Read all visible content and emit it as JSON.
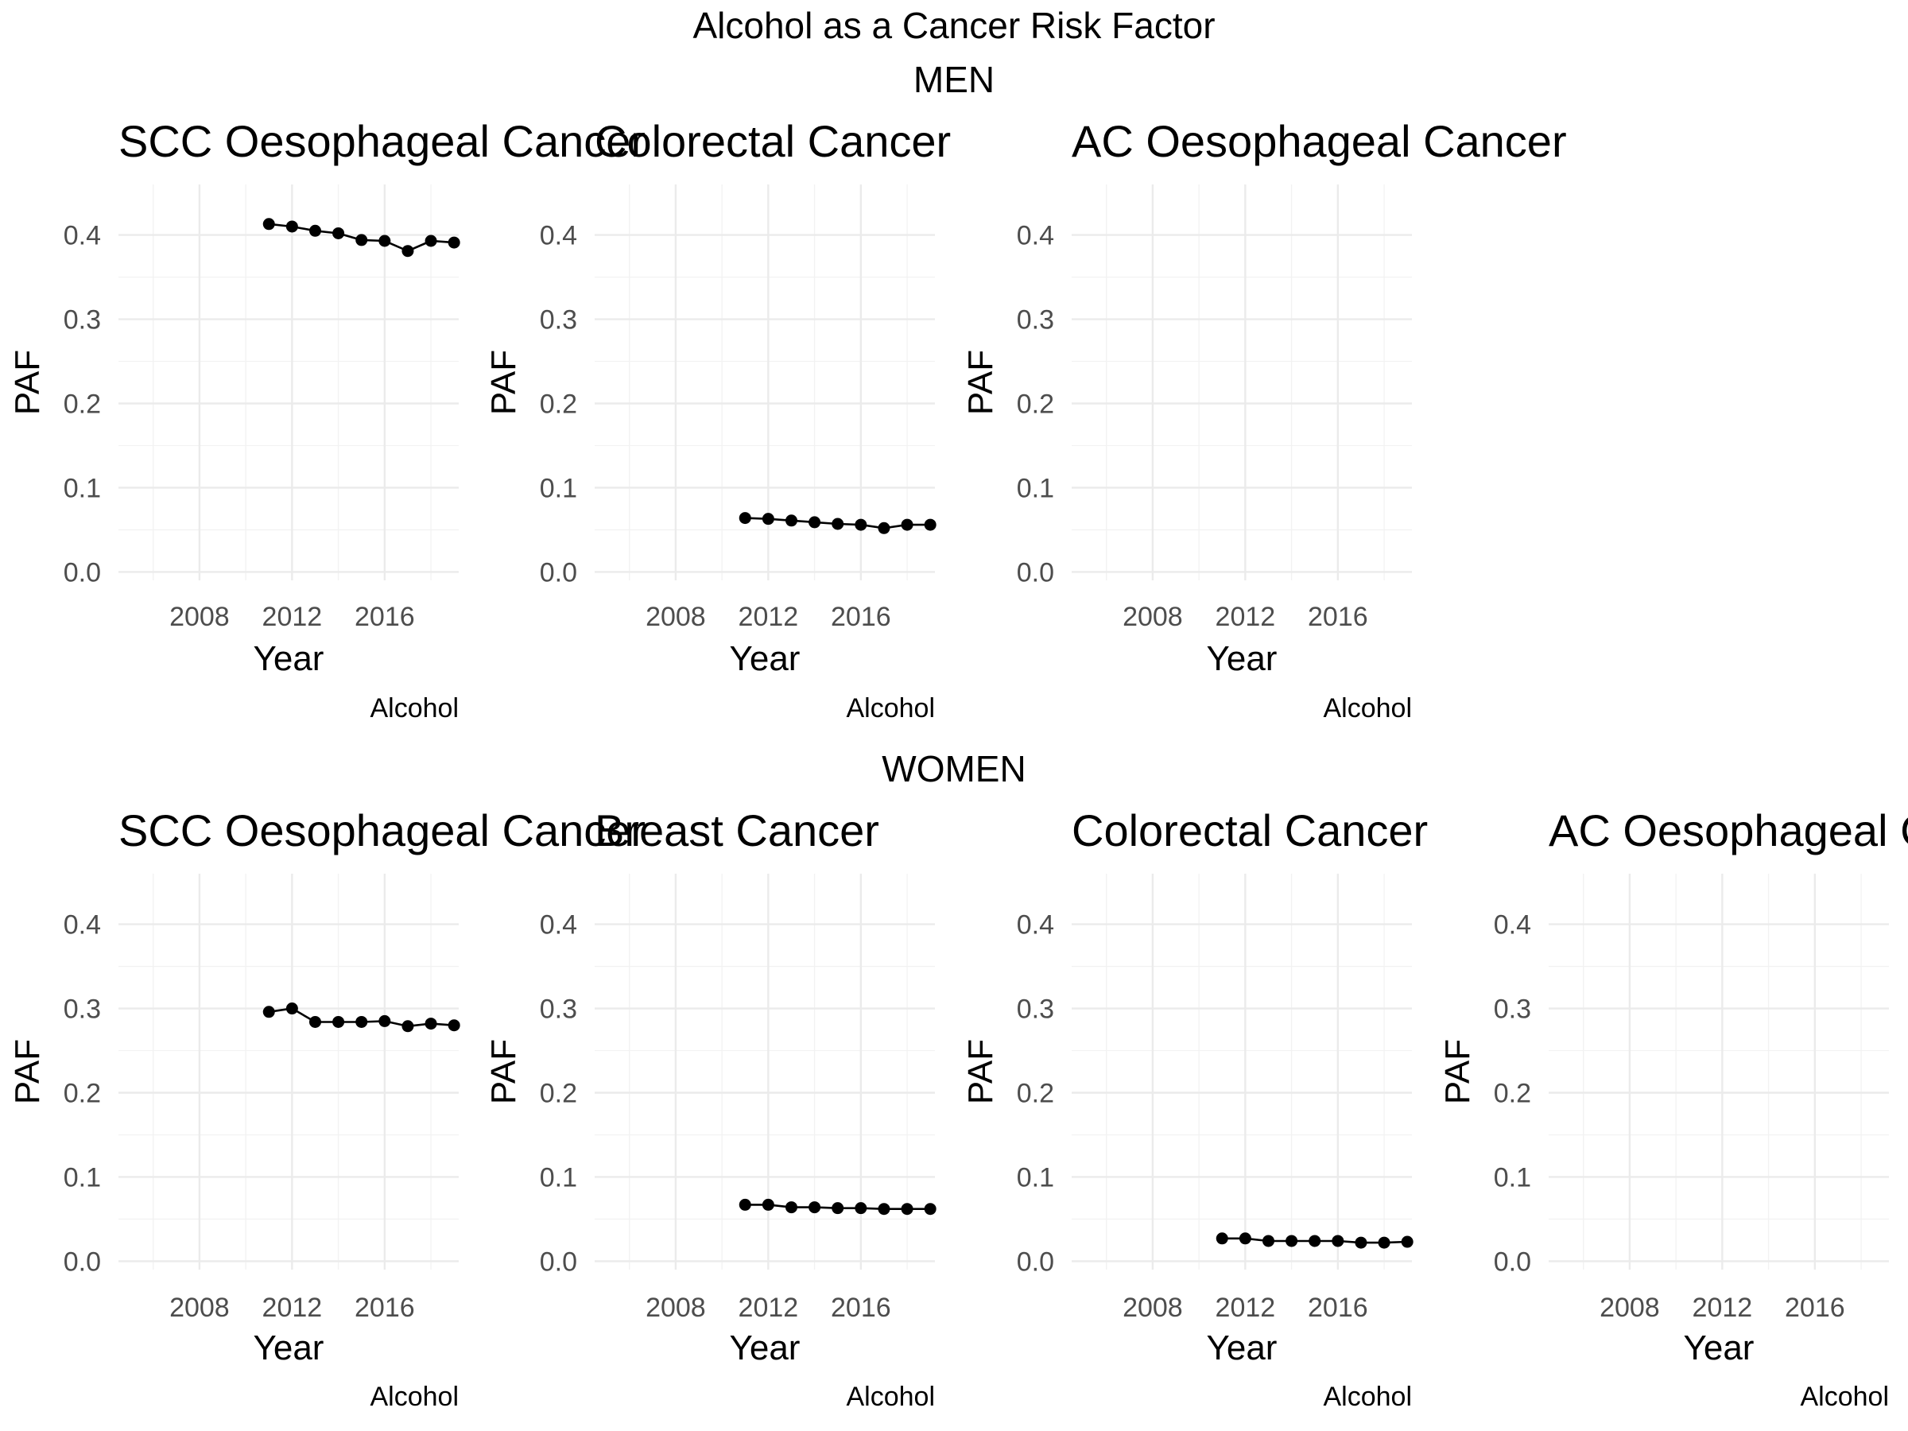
{
  "title": "Alcohol as a Cancer Risk Factor",
  "sections": [
    {
      "label": "MEN"
    },
    {
      "label": "WOMEN"
    }
  ],
  "chart_data": [
    {
      "type": "line",
      "section": 0,
      "col": 0,
      "title": "SCC Oesophageal Cancer",
      "xlabel": "Year",
      "ylabel": "PAF",
      "caption": "Alcohol",
      "xlim": [
        2004.5,
        2019.2
      ],
      "ylim": [
        -0.01,
        0.46
      ],
      "xticks": [
        2008,
        2012,
        2016
      ],
      "xtick_labels": [
        "2008",
        "2012",
        "2016"
      ],
      "yticks": [
        0.0,
        0.1,
        0.2,
        0.3,
        0.4
      ],
      "ytick_labels": [
        "0.0",
        "0.1",
        "0.2",
        "0.3",
        "0.4"
      ],
      "grid": true,
      "series": [
        {
          "x": [
            2011,
            2012,
            2013,
            2014,
            2015,
            2016,
            2017,
            2018,
            2019
          ],
          "y": [
            0.413,
            0.41,
            0.405,
            0.402,
            0.394,
            0.393,
            0.381,
            0.393,
            0.391
          ]
        }
      ]
    },
    {
      "type": "line",
      "section": 0,
      "col": 1,
      "title": "Colorectal Cancer",
      "xlabel": "Year",
      "ylabel": "PAF",
      "caption": "Alcohol",
      "xlim": [
        2004.5,
        2019.2
      ],
      "ylim": [
        -0.01,
        0.46
      ],
      "xticks": [
        2008,
        2012,
        2016
      ],
      "xtick_labels": [
        "2008",
        "2012",
        "2016"
      ],
      "yticks": [
        0.0,
        0.1,
        0.2,
        0.3,
        0.4
      ],
      "ytick_labels": [
        "0.0",
        "0.1",
        "0.2",
        "0.3",
        "0.4"
      ],
      "grid": true,
      "series": [
        {
          "x": [
            2011,
            2012,
            2013,
            2014,
            2015,
            2016,
            2017,
            2018,
            2019
          ],
          "y": [
            0.064,
            0.063,
            0.061,
            0.059,
            0.057,
            0.056,
            0.052,
            0.056,
            0.056
          ]
        }
      ]
    },
    {
      "type": "line",
      "section": 0,
      "col": 2,
      "title": "AC Oesophageal Cancer",
      "xlabel": "Year",
      "ylabel": "PAF",
      "caption": "Alcohol",
      "xlim": [
        2004.5,
        2019.2
      ],
      "ylim": [
        -0.01,
        0.46
      ],
      "xticks": [
        2008,
        2012,
        2016
      ],
      "xtick_labels": [
        "2008",
        "2012",
        "2016"
      ],
      "yticks": [
        0.0,
        0.1,
        0.2,
        0.3,
        0.4
      ],
      "ytick_labels": [
        "0.0",
        "0.1",
        "0.2",
        "0.3",
        "0.4"
      ],
      "grid": true,
      "series": []
    },
    {
      "type": "line",
      "section": 1,
      "col": 0,
      "title": "SCC Oesophageal Cancer",
      "xlabel": "Year",
      "ylabel": "PAF",
      "caption": "Alcohol",
      "xlim": [
        2004.5,
        2019.2
      ],
      "ylim": [
        -0.01,
        0.46
      ],
      "xticks": [
        2008,
        2012,
        2016
      ],
      "xtick_labels": [
        "2008",
        "2012",
        "2016"
      ],
      "yticks": [
        0.0,
        0.1,
        0.2,
        0.3,
        0.4
      ],
      "ytick_labels": [
        "0.0",
        "0.1",
        "0.2",
        "0.3",
        "0.4"
      ],
      "grid": true,
      "series": [
        {
          "x": [
            2011,
            2012,
            2013,
            2014,
            2015,
            2016,
            2017,
            2018,
            2019
          ],
          "y": [
            0.296,
            0.3,
            0.284,
            0.284,
            0.284,
            0.285,
            0.279,
            0.282,
            0.28
          ]
        }
      ]
    },
    {
      "type": "line",
      "section": 1,
      "col": 1,
      "title": "Breast Cancer",
      "xlabel": "Year",
      "ylabel": "PAF",
      "caption": "Alcohol",
      "xlim": [
        2004.5,
        2019.2
      ],
      "ylim": [
        -0.01,
        0.46
      ],
      "xticks": [
        2008,
        2012,
        2016
      ],
      "xtick_labels": [
        "2008",
        "2012",
        "2016"
      ],
      "yticks": [
        0.0,
        0.1,
        0.2,
        0.3,
        0.4
      ],
      "ytick_labels": [
        "0.0",
        "0.1",
        "0.2",
        "0.3",
        "0.4"
      ],
      "grid": true,
      "series": [
        {
          "x": [
            2011,
            2012,
            2013,
            2014,
            2015,
            2016,
            2017,
            2018,
            2019
          ],
          "y": [
            0.067,
            0.067,
            0.064,
            0.064,
            0.063,
            0.063,
            0.062,
            0.062,
            0.062
          ]
        }
      ]
    },
    {
      "type": "line",
      "section": 1,
      "col": 2,
      "title": "Colorectal Cancer",
      "xlabel": "Year",
      "ylabel": "PAF",
      "caption": "Alcohol",
      "xlim": [
        2004.5,
        2019.2
      ],
      "ylim": [
        -0.01,
        0.46
      ],
      "xticks": [
        2008,
        2012,
        2016
      ],
      "xtick_labels": [
        "2008",
        "2012",
        "2016"
      ],
      "yticks": [
        0.0,
        0.1,
        0.2,
        0.3,
        0.4
      ],
      "ytick_labels": [
        "0.0",
        "0.1",
        "0.2",
        "0.3",
        "0.4"
      ],
      "grid": true,
      "series": [
        {
          "x": [
            2011,
            2012,
            2013,
            2014,
            2015,
            2016,
            2017,
            2018,
            2019
          ],
          "y": [
            0.027,
            0.027,
            0.024,
            0.024,
            0.024,
            0.024,
            0.022,
            0.022,
            0.023
          ]
        }
      ]
    },
    {
      "type": "line",
      "section": 1,
      "col": 3,
      "title": "AC Oesophageal Cancer",
      "xlabel": "Year",
      "ylabel": "PAF",
      "caption": "Alcohol",
      "xlim": [
        2004.5,
        2019.2
      ],
      "ylim": [
        -0.01,
        0.46
      ],
      "xticks": [
        2008,
        2012,
        2016
      ],
      "xtick_labels": [
        "2008",
        "2012",
        "2016"
      ],
      "yticks": [
        0.0,
        0.1,
        0.2,
        0.3,
        0.4
      ],
      "ytick_labels": [
        "0.0",
        "0.1",
        "0.2",
        "0.3",
        "0.4"
      ],
      "grid": true,
      "series": []
    }
  ]
}
